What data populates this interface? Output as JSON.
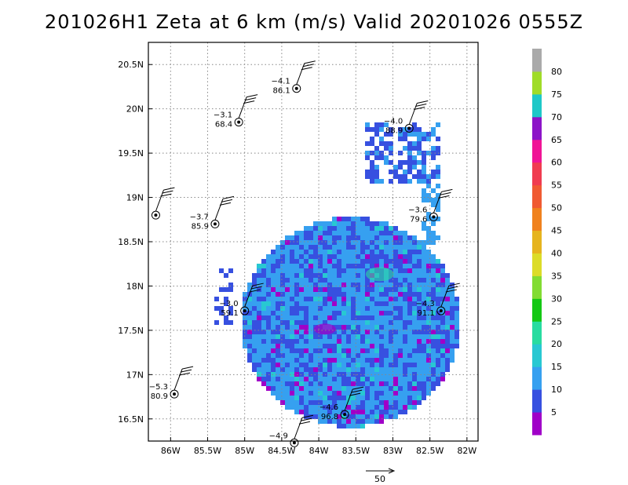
{
  "title": "201026H1  Zeta at 6 km (m/s)  Valid 20201026  0555Z",
  "chart_data": {
    "type": "heatmap",
    "title": "201026H1  Zeta at 6 km (m/s)  Valid 20201026  0555Z",
    "xlim": [
      -86.3,
      -81.85
    ],
    "ylim": [
      16.25,
      20.75
    ],
    "x_ticks": [
      -86,
      -85.5,
      -85,
      -84.5,
      -84,
      -83.5,
      -83,
      -82.5,
      -82
    ],
    "x_tick_labels": [
      "86W",
      "85.5W",
      "85W",
      "84.5W",
      "84W",
      "83.5W",
      "83W",
      "82.5W",
      "82W"
    ],
    "y_ticks": [
      16.5,
      17,
      17.5,
      18,
      18.5,
      19,
      19.5,
      20,
      20.5
    ],
    "y_tick_labels": [
      "16.5N",
      "17N",
      "17.5N",
      "18N",
      "18.5N",
      "19N",
      "19.5N",
      "20N",
      "20.5N"
    ],
    "grid": true,
    "colorbar": {
      "labels": [
        "5",
        "10",
        "15",
        "20",
        "25",
        "30",
        "35",
        "40",
        "45",
        "50",
        "55",
        "60",
        "65",
        "70",
        "75",
        "80"
      ],
      "colors": [
        "#a000c8",
        "#3750e0",
        "#36a0f0",
        "#28c8d2",
        "#28dca0",
        "#14c814",
        "#82dc32",
        "#dcdc28",
        "#e6b41e",
        "#f0821e",
        "#f05a32",
        "#f03c50",
        "#f01496",
        "#8c14c8",
        "#1ec8c8",
        "#a0dc28",
        "#aaaaaa"
      ]
    },
    "vector_key": "50",
    "observations": [
      {
        "lon": -84.3,
        "lat": 20.23,
        "v1": "−4.1",
        "v2": "86.1"
      },
      {
        "lon": -85.08,
        "lat": 19.85,
        "v1": "−3.1",
        "v2": "68.4"
      },
      {
        "lon": -82.78,
        "lat": 19.78,
        "v1": "−4.0",
        "v2": "88.9"
      },
      {
        "lon": -86.2,
        "lat": 18.8,
        "v1": "",
        "v2": ""
      },
      {
        "lon": -85.4,
        "lat": 18.7,
        "v1": "−3.7",
        "v2": "85.9"
      },
      {
        "lon": -82.45,
        "lat": 18.78,
        "v1": "−3.6",
        "v2": "79.6"
      },
      {
        "lon": -85.0,
        "lat": 17.72,
        "v1": "−3.0",
        "v2": "59.1"
      },
      {
        "lon": -82.35,
        "lat": 17.72,
        "v1": "−4.3",
        "v2": "91.1"
      },
      {
        "lon": -85.95,
        "lat": 16.78,
        "v1": "−5.3",
        "v2": "80.9"
      },
      {
        "lon": -83.65,
        "lat": 16.55,
        "v1": "−4.6",
        "v2": "96.8"
      },
      {
        "lon": -84.33,
        "lat": 16.23,
        "v1": "−4.9",
        "v2": ""
      }
    ]
  }
}
